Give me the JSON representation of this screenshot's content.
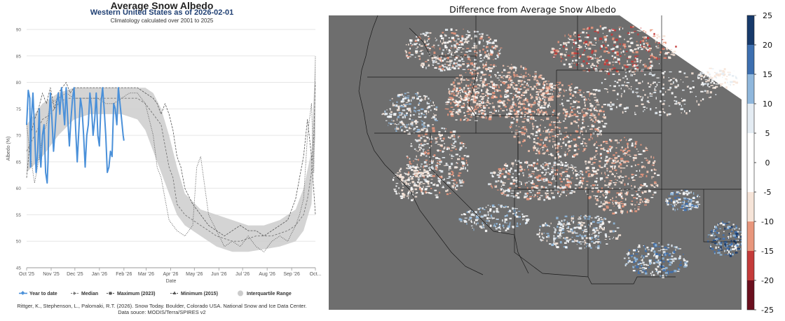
{
  "left_chart": {
    "title": "Average Snow Albedo",
    "subtitle": "Western United States as of 2026-02-01",
    "note": "Climatology calculated over 2001 to 2025",
    "credit_line1": "Rittger, K., Stephenson, L., Palomaki, R.T. (2026). Snow Today. Boulder, Colorado USA. National Snow and Ice Data Center.",
    "credit_line2": "Data souce: MODIS/Terra/SPIRES v2",
    "legend": [
      {
        "label": "Year to date",
        "color": "#4a90d9",
        "marker": "diamond"
      },
      {
        "label": "Median",
        "color": "#777777",
        "marker": "dash"
      },
      {
        "label": "Maximum (2023)",
        "color": "#555555",
        "marker": "square"
      },
      {
        "label": "Minimum (2015)",
        "color": "#555555",
        "marker": "triangle"
      },
      {
        "label": "Interquartile Range",
        "color": "#cccccc",
        "marker": "circle"
      }
    ]
  },
  "chart_data": [
    {
      "type": "line",
      "title": "Average Snow Albedo",
      "subtitle": "Western United States as of 2026-02-01",
      "xlabel": "Date",
      "ylabel": "Albedo (%)",
      "ylim": [
        45,
        90
      ],
      "yticks": [
        "45",
        "50",
        "55",
        "60",
        "65",
        "70",
        "75",
        "80",
        "85",
        "90"
      ],
      "xticks": [
        "Oct '25",
        "Nov '25",
        "Dec '25",
        "Jan '26",
        "Feb '26",
        "Mar '26",
        "Apr '26",
        "May '26",
        "Jun '26",
        "Jul '26",
        "Aug '26",
        "Sep '26",
        "Oct..."
      ],
      "xtick_days": [
        0,
        31,
        61,
        92,
        123,
        151,
        182,
        212,
        243,
        273,
        304,
        335,
        365
      ],
      "x_unit": "days since 2025-10-01",
      "grid": true,
      "legend_placement": "bottom",
      "series": [
        {
          "name": "Year to date",
          "color": "#4a90d9",
          "x": [
            0,
            2,
            4,
            5,
            6,
            8,
            10,
            12,
            14,
            16,
            17,
            18,
            20,
            22,
            24,
            26,
            27,
            28,
            30,
            32,
            34,
            36,
            38,
            40,
            42,
            44,
            46,
            48,
            50,
            52,
            54,
            56,
            58,
            60,
            62,
            64,
            66,
            68,
            70,
            72,
            74,
            76,
            78,
            80,
            82,
            84,
            86,
            88,
            90,
            92,
            94,
            96,
            98,
            100,
            102,
            104,
            106,
            108,
            110,
            112,
            114,
            116,
            118,
            120,
            122,
            123
          ],
          "values": [
            72,
            78.5,
            77,
            64,
            73,
            78,
            71,
            63,
            67,
            75,
            66,
            64,
            70,
            72,
            63,
            61,
            65,
            72,
            78,
            73,
            67,
            71,
            76,
            78,
            74,
            79,
            76,
            72,
            79,
            73,
            68,
            73,
            77,
            79,
            71,
            65,
            71,
            77,
            75,
            70,
            64,
            70,
            72,
            78,
            75,
            70,
            73,
            78,
            70,
            68,
            76,
            79,
            75,
            70,
            63,
            64,
            67,
            66,
            76,
            75,
            72,
            79,
            76,
            73,
            70,
            69
          ]
        },
        {
          "name": "Median",
          "color": "#777777",
          "x": [
            0,
            10,
            20,
            30,
            40,
            50,
            60,
            70,
            80,
            90,
            100,
            110,
            120,
            130,
            140,
            150,
            160,
            170,
            175,
            180,
            185,
            190,
            200,
            210,
            220,
            230,
            240,
            250,
            260,
            270,
            280,
            290,
            300,
            310,
            320,
            330,
            340,
            350,
            355,
            360,
            363,
            365
          ],
          "values": [
            67,
            70,
            73,
            74,
            76,
            77,
            77,
            77,
            77,
            77,
            77,
            77,
            77,
            77,
            77,
            76,
            74,
            72,
            68,
            64,
            62,
            57,
            55,
            54,
            53,
            52,
            51,
            50.5,
            50,
            50,
            50.5,
            51,
            51,
            51,
            51.5,
            52,
            53,
            55,
            58,
            63,
            70,
            80
          ]
        },
        {
          "name": "Maximum (2023)",
          "color": "#555555",
          "x": [
            0,
            5,
            10,
            15,
            20,
            25,
            30,
            35,
            40,
            45,
            50,
            55,
            60,
            70,
            80,
            90,
            100,
            110,
            120,
            130,
            140,
            150,
            160,
            165,
            170,
            175,
            180,
            185,
            190,
            195,
            200,
            210,
            220,
            230,
            240,
            250,
            260,
            270,
            280,
            290,
            300,
            310,
            320,
            330,
            340,
            345,
            350,
            355,
            360,
            365
          ],
          "values": [
            62,
            70,
            73,
            75,
            78,
            76,
            79,
            75,
            78,
            79,
            80,
            78,
            79,
            79,
            79,
            79,
            79,
            79,
            79,
            79,
            79,
            78,
            77,
            76,
            74,
            76,
            74,
            71,
            66,
            64,
            60,
            57,
            55,
            53,
            52,
            51,
            52,
            53,
            52,
            52,
            51,
            52,
            53,
            54,
            58,
            62,
            66,
            73,
            66,
            55
          ]
        },
        {
          "name": "Minimum (2015)",
          "color": "#555555",
          "x": [
            0,
            5,
            10,
            15,
            20,
            25,
            30,
            40,
            50,
            60,
            70,
            80,
            90,
            100,
            110,
            120,
            130,
            140,
            150,
            160,
            165,
            170,
            175,
            180,
            190,
            200,
            210,
            215,
            220,
            230,
            240,
            250,
            260,
            270,
            280,
            290,
            300,
            310,
            320,
            330,
            340,
            345,
            350,
            355,
            360,
            363,
            365
          ],
          "values": [
            72,
            66,
            61,
            65,
            70,
            72,
            76,
            77,
            78,
            77,
            77,
            77,
            77,
            76,
            76,
            77,
            78,
            78,
            76,
            70,
            64,
            62,
            58,
            54,
            52,
            51,
            53,
            64,
            66,
            55,
            52,
            49,
            50,
            49,
            51,
            49,
            48,
            50,
            51,
            50,
            53,
            55,
            58,
            70,
            76,
            63,
            85
          ]
        }
      ],
      "iqr": {
        "name": "Interquartile Range",
        "color": "#cccccc",
        "x": [
          0,
          20,
          40,
          60,
          80,
          100,
          120,
          140,
          150,
          160,
          170,
          180,
          190,
          200,
          220,
          240,
          260,
          280,
          300,
          320,
          340,
          350,
          360,
          365
        ],
        "low": [
          63,
          66,
          70,
          73,
          74,
          74,
          74,
          73,
          71,
          67,
          63,
          59,
          55,
          53,
          51,
          49,
          48,
          48,
          48.5,
          49,
          50,
          52,
          57,
          70
        ],
        "high": [
          72,
          76,
          78,
          79,
          79,
          79,
          79,
          79,
          79,
          78,
          75,
          70,
          64,
          59,
          56,
          55,
          54,
          53,
          53,
          54,
          56,
          60,
          67,
          85
        ]
      }
    },
    {
      "type": "heatmap",
      "title": "Difference from Average Snow Albedo",
      "colorbar_ticks": [
        "25",
        "20",
        "15",
        "10",
        "5",
        "0",
        "-5",
        "-10",
        "-15",
        "-20",
        "-25"
      ],
      "colorbar_bins": [
        {
          "from": 20,
          "to": 25,
          "color": "#173a6b"
        },
        {
          "from": 15,
          "to": 20,
          "color": "#3d6fb0"
        },
        {
          "from": 10,
          "to": 15,
          "color": "#8fb7dc"
        },
        {
          "from": 5,
          "to": 10,
          "color": "#e4ecf3"
        },
        {
          "from": -5,
          "to": 5,
          "color": "#ffffff"
        },
        {
          "from": -10,
          "to": -5,
          "color": "#f6e4d8"
        },
        {
          "from": -15,
          "to": -10,
          "color": "#e8967c"
        },
        {
          "from": -20,
          "to": -15,
          "color": "#c43b3a"
        },
        {
          "from": -25,
          "to": -20,
          "color": "#6b0f1e"
        }
      ],
      "background_color": "#6e6e6e"
    }
  ]
}
